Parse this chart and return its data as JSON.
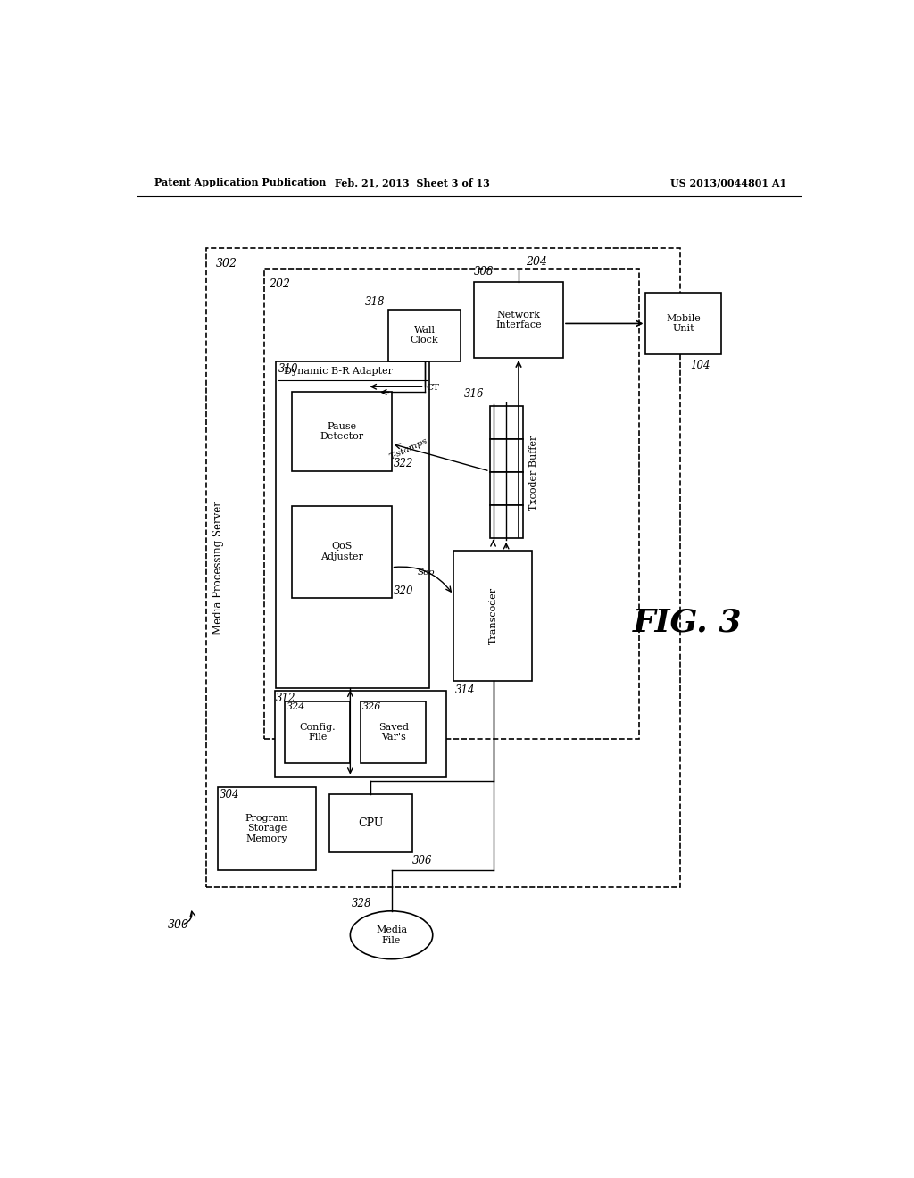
{
  "header_left": "Patent Application Publication",
  "header_mid": "Feb. 21, 2013  Sheet 3 of 13",
  "header_right": "US 2013/0044801 A1",
  "bg_color": "#ffffff"
}
